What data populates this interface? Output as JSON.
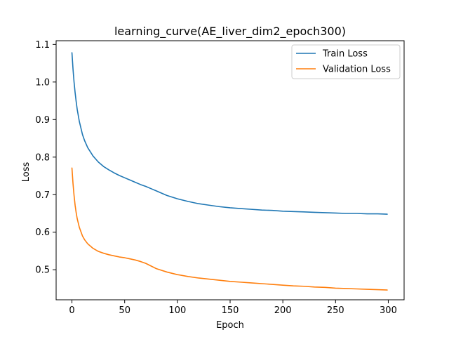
{
  "chart_data": {
    "type": "line",
    "title": "learning_curve(AE_liver_dim2_epoch300)",
    "xlabel": "Epoch",
    "ylabel": "Loss",
    "xlim": [
      -15,
      315
    ],
    "ylim": [
      0.42,
      1.11
    ],
    "xticks": [
      0,
      50,
      100,
      150,
      200,
      250,
      300
    ],
    "yticks": [
      0.5,
      0.6,
      0.7,
      0.8,
      0.9,
      1.0,
      1.1
    ],
    "ytick_labels": [
      "0.5",
      "0.6",
      "0.7",
      "0.8",
      "0.9",
      "1.0",
      "1.1"
    ],
    "grid": false,
    "legend_position": "top-right",
    "x": [
      0,
      1,
      2,
      3,
      4,
      5,
      7,
      10,
      12,
      15,
      20,
      25,
      30,
      35,
      40,
      45,
      50,
      55,
      60,
      65,
      70,
      75,
      80,
      90,
      100,
      110,
      120,
      130,
      140,
      150,
      160,
      170,
      180,
      190,
      200,
      210,
      220,
      230,
      240,
      250,
      260,
      270,
      280,
      290,
      299
    ],
    "series": [
      {
        "name": "Train Loss",
        "color": "#1f77b4",
        "values": [
          1.078,
          1.035,
          1.0,
          0.972,
          0.948,
          0.927,
          0.895,
          0.86,
          0.844,
          0.825,
          0.803,
          0.787,
          0.775,
          0.766,
          0.758,
          0.751,
          0.745,
          0.739,
          0.733,
          0.727,
          0.722,
          0.716,
          0.71,
          0.698,
          0.689,
          0.682,
          0.676,
          0.672,
          0.668,
          0.665,
          0.663,
          0.661,
          0.659,
          0.658,
          0.656,
          0.655,
          0.654,
          0.653,
          0.652,
          0.651,
          0.65,
          0.65,
          0.649,
          0.649,
          0.648
        ]
      },
      {
        "name": "Validation Loss",
        "color": "#ff7f0e",
        "values": [
          0.771,
          0.73,
          0.698,
          0.672,
          0.652,
          0.636,
          0.613,
          0.59,
          0.58,
          0.569,
          0.557,
          0.549,
          0.544,
          0.54,
          0.537,
          0.534,
          0.532,
          0.529,
          0.526,
          0.522,
          0.517,
          0.51,
          0.503,
          0.494,
          0.487,
          0.482,
          0.478,
          0.475,
          0.472,
          0.469,
          0.467,
          0.465,
          0.463,
          0.461,
          0.459,
          0.457,
          0.456,
          0.454,
          0.453,
          0.451,
          0.45,
          0.449,
          0.448,
          0.447,
          0.446
        ]
      }
    ]
  }
}
